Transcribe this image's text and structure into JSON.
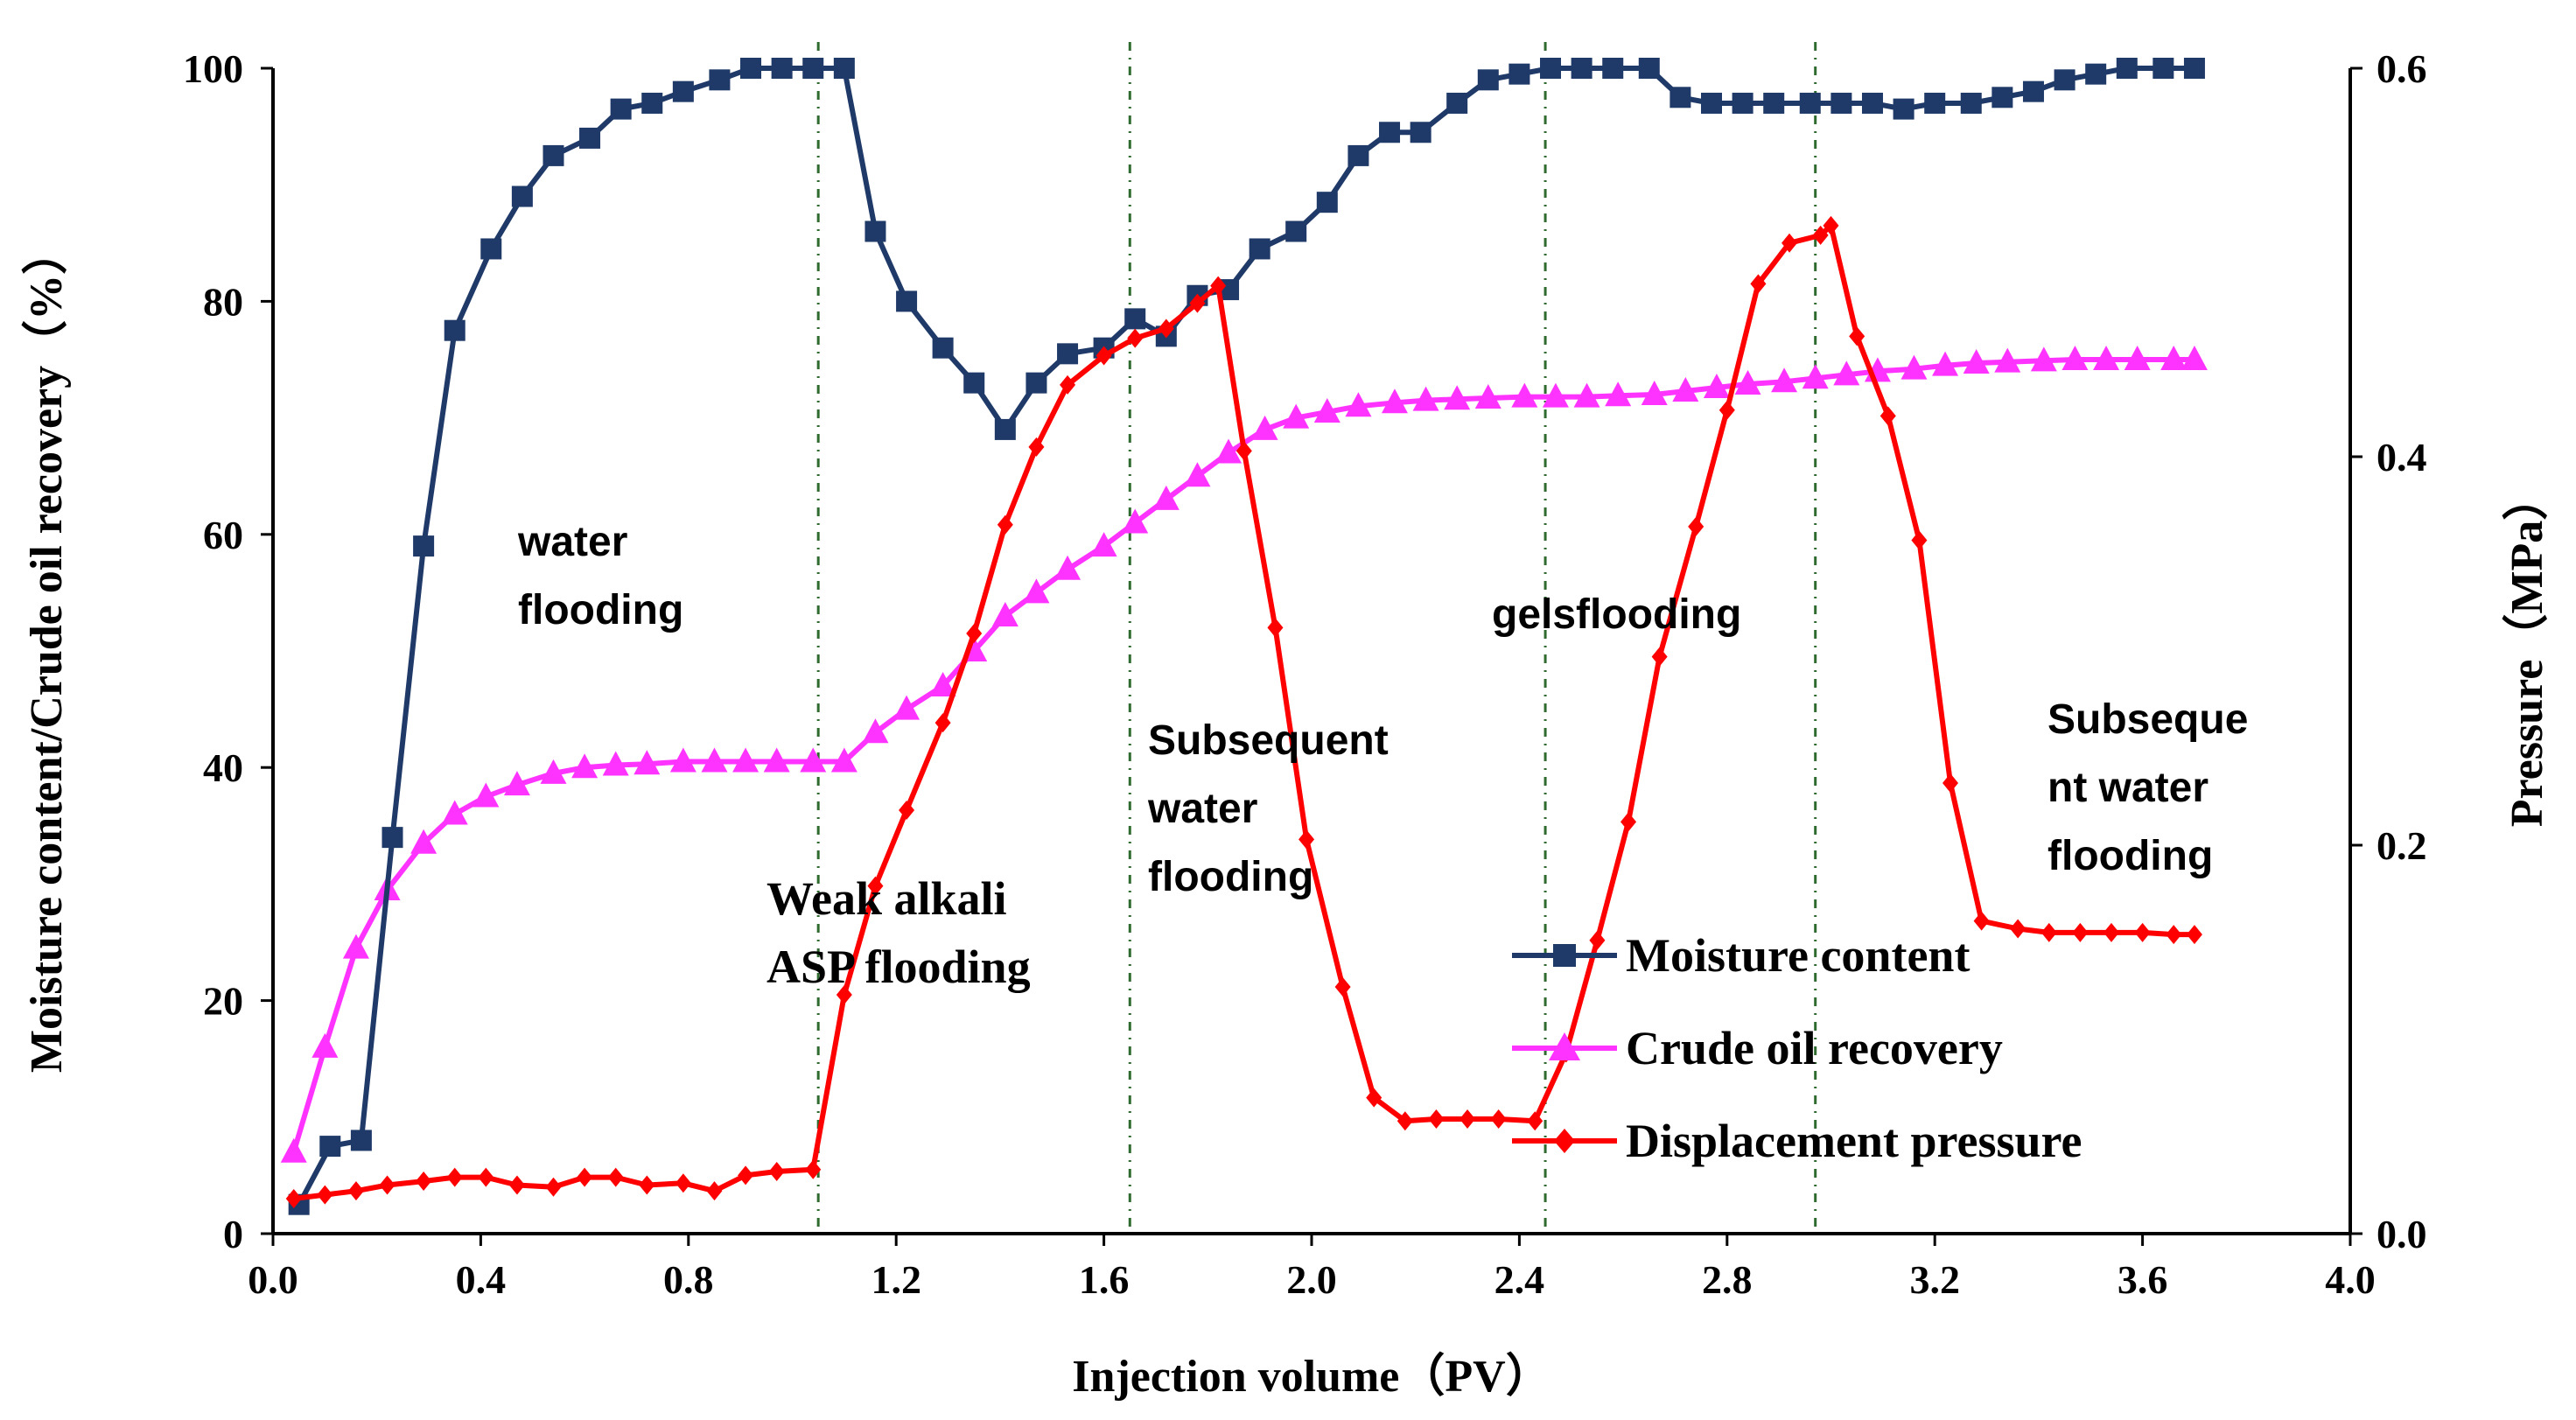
{
  "chart_data": {
    "type": "line",
    "x_label": "Injection volume（PV）",
    "y_left_label": "Moisture content/Crude oil recovery（%）",
    "y_right_label": "Pressure（MPa）",
    "xlim": [
      0.0,
      4.0
    ],
    "ylim_left": [
      0,
      100
    ],
    "ylim_right": [
      0.0,
      0.6
    ],
    "x_ticks": [
      "0.0",
      "0.4",
      "0.8",
      "1.2",
      "1.6",
      "2.0",
      "2.4",
      "2.8",
      "3.2",
      "3.6",
      "4.0"
    ],
    "y_left_ticks": [
      "0",
      "20",
      "40",
      "60",
      "80",
      "100"
    ],
    "y_right_ticks": [
      "0.0",
      "0.2",
      "0.4",
      "0.6"
    ],
    "phase_boundaries": [
      1.05,
      1.65,
      2.45,
      2.97
    ],
    "annotations": [
      {
        "id": "water",
        "lines": [
          "water",
          "flooding"
        ]
      },
      {
        "id": "weak",
        "lines": [
          "Weak alkali",
          "ASP flooding"
        ]
      },
      {
        "id": "subseq1",
        "lines": [
          "Subsequent",
          "water",
          "flooding"
        ]
      },
      {
        "id": "gels",
        "lines": [
          "gelsflooding"
        ]
      },
      {
        "id": "subseq2",
        "lines": [
          "Subseque",
          "nt water",
          "flooding"
        ]
      }
    ],
    "series": [
      {
        "name": "Moisture content",
        "axis": "left",
        "color": "#1f3a68",
        "marker": "square",
        "x": [
          0.05,
          0.11,
          0.17,
          0.23,
          0.29,
          0.35,
          0.42,
          0.48,
          0.54,
          0.61,
          0.67,
          0.73,
          0.79,
          0.86,
          0.92,
          0.98,
          1.04,
          1.1,
          1.16,
          1.22,
          1.29,
          1.35,
          1.41,
          1.47,
          1.53,
          1.6,
          1.66,
          1.72,
          1.78,
          1.84,
          1.9,
          1.97,
          2.03,
          2.09,
          2.15,
          2.21,
          2.28,
          2.34,
          2.4,
          2.46,
          2.52,
          2.58,
          2.65,
          2.71,
          2.77,
          2.83,
          2.89,
          2.96,
          3.02,
          3.08,
          3.14,
          3.2,
          3.27,
          3.33,
          3.39,
          3.45,
          3.51,
          3.57,
          3.64,
          3.7
        ],
        "values": [
          2.5,
          7.5,
          8,
          34,
          59,
          77.5,
          84.5,
          89,
          92.5,
          94,
          96.5,
          97,
          98,
          99,
          100,
          100,
          100,
          100,
          86,
          80,
          76,
          73,
          69,
          73,
          75.5,
          76,
          78.5,
          77,
          80.5,
          81,
          84.5,
          86,
          88.5,
          92.5,
          94.5,
          94.5,
          97,
          99,
          99.5,
          100,
          100,
          100,
          100,
          97.5,
          97,
          97,
          97,
          97,
          97,
          97,
          96.5,
          97,
          97,
          97.5,
          98,
          99,
          99.5,
          100,
          100,
          100
        ]
      },
      {
        "name": "Crude oil recovery",
        "axis": "left",
        "color": "#ff33ff",
        "marker": "triangle",
        "x": [
          0.04,
          0.1,
          0.16,
          0.22,
          0.29,
          0.35,
          0.41,
          0.47,
          0.54,
          0.6,
          0.66,
          0.72,
          0.79,
          0.85,
          0.91,
          0.97,
          1.04,
          1.1,
          1.16,
          1.22,
          1.29,
          1.35,
          1.41,
          1.47,
          1.53,
          1.6,
          1.66,
          1.72,
          1.78,
          1.84,
          1.91,
          1.97,
          2.03,
          2.09,
          2.16,
          2.22,
          2.28,
          2.34,
          2.41,
          2.47,
          2.53,
          2.59,
          2.66,
          2.72,
          2.78,
          2.84,
          2.91,
          2.97,
          3.03,
          3.09,
          3.16,
          3.22,
          3.28,
          3.34,
          3.41,
          3.47,
          3.53,
          3.59,
          3.66,
          3.7
        ],
        "values": [
          7,
          16,
          24.5,
          29.5,
          33.5,
          36,
          37.5,
          38.5,
          39.5,
          40,
          40.2,
          40.3,
          40.5,
          40.5,
          40.5,
          40.5,
          40.5,
          40.5,
          43,
          45,
          47,
          50,
          53,
          55,
          57,
          59,
          61,
          63,
          65,
          67,
          69,
          70,
          70.5,
          71,
          71.3,
          71.5,
          71.6,
          71.7,
          71.8,
          71.8,
          71.8,
          71.9,
          72,
          72.3,
          72.6,
          72.9,
          73.1,
          73.4,
          73.7,
          74,
          74.2,
          74.5,
          74.7,
          74.8,
          74.9,
          75,
          75,
          75,
          75,
          75
        ]
      },
      {
        "name": "Displacement pressure",
        "axis": "right",
        "color": "#ff0000",
        "marker": "diamond",
        "x": [
          0.04,
          0.1,
          0.16,
          0.22,
          0.29,
          0.35,
          0.41,
          0.47,
          0.54,
          0.6,
          0.66,
          0.72,
          0.79,
          0.85,
          0.91,
          0.97,
          1.04,
          1.1,
          1.16,
          1.22,
          1.29,
          1.35,
          1.41,
          1.47,
          1.53,
          1.6,
          1.66,
          1.72,
          1.78,
          1.82,
          1.87,
          1.93,
          1.99,
          2.06,
          2.12,
          2.18,
          2.24,
          2.3,
          2.36,
          2.43,
          2.49,
          2.55,
          2.61,
          2.67,
          2.74,
          2.8,
          2.86,
          2.92,
          2.98,
          3.0,
          3.05,
          3.11,
          3.17,
          3.23,
          3.29,
          3.36,
          3.42,
          3.48,
          3.54,
          3.6,
          3.66,
          3.7
        ],
        "values": [
          0.018,
          0.02,
          0.022,
          0.025,
          0.027,
          0.029,
          0.029,
          0.025,
          0.024,
          0.029,
          0.029,
          0.025,
          0.026,
          0.022,
          0.03,
          0.032,
          0.033,
          0.123,
          0.179,
          0.218,
          0.263,
          0.309,
          0.365,
          0.405,
          0.437,
          0.452,
          0.461,
          0.466,
          0.479,
          0.488,
          0.403,
          0.312,
          0.203,
          0.127,
          0.07,
          0.058,
          0.059,
          0.059,
          0.059,
          0.058,
          0.093,
          0.151,
          0.212,
          0.297,
          0.364,
          0.424,
          0.489,
          0.51,
          0.514,
          0.519,
          0.462,
          0.421,
          0.357,
          0.232,
          0.161,
          0.157,
          0.155,
          0.155,
          0.155,
          0.155,
          0.154,
          0.154
        ]
      }
    ]
  }
}
